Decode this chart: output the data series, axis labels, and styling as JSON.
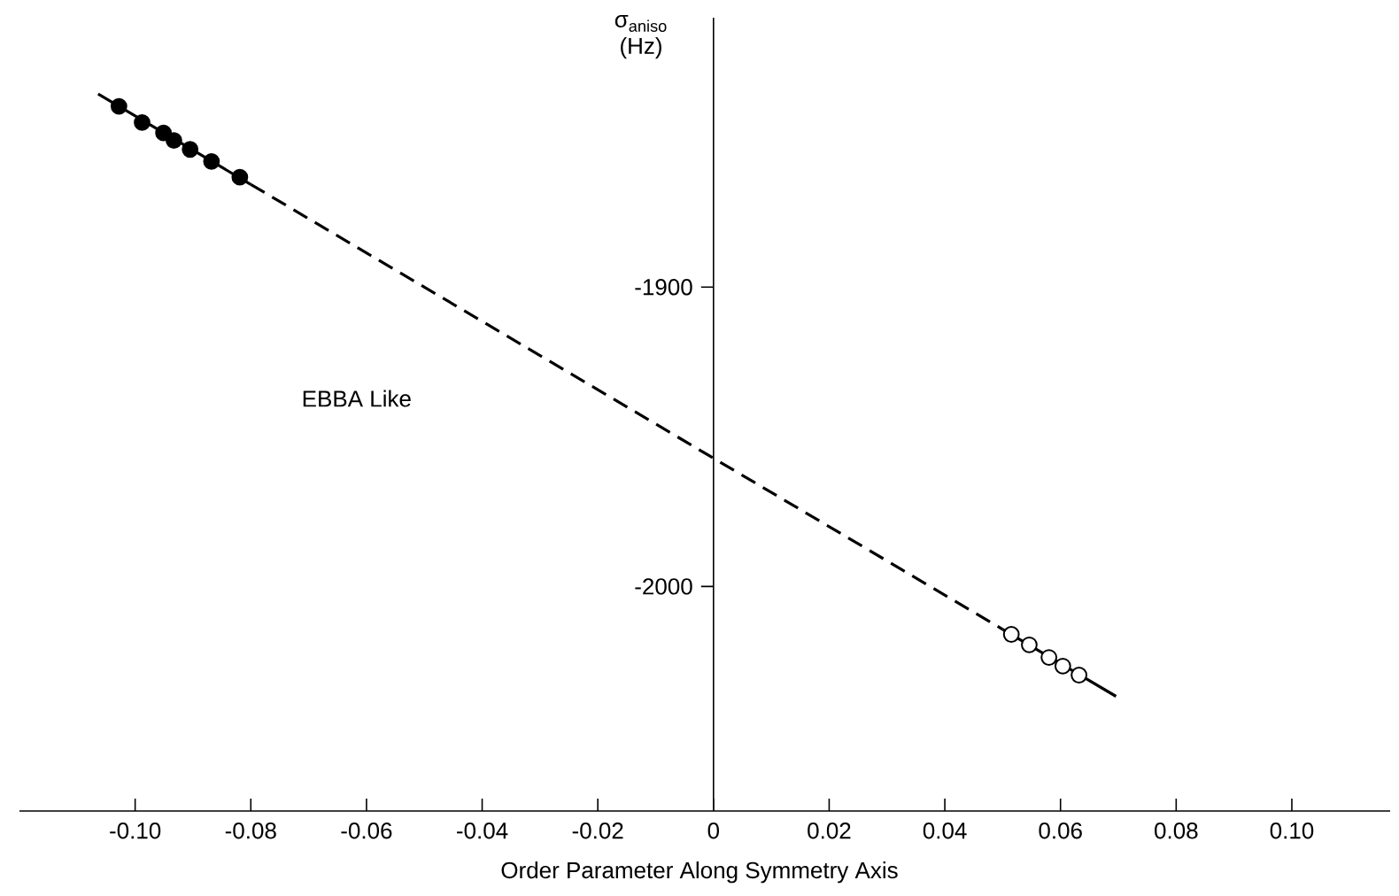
{
  "chart_data": {
    "type": "scatter",
    "xlabel": "Order Parameter Along Symmetry Axis",
    "ylabel": "σ$_{aniso}$ (Hz)",
    "xlim": [
      -0.12,
      0.117
    ],
    "ylim": [
      -2075,
      -1810
    ],
    "xticks": [
      {
        "value": -0.1,
        "label": "-0.10"
      },
      -0.08,
      -0.06,
      -0.04,
      -0.02,
      0,
      0.02,
      0.04,
      0.06,
      0.08,
      {
        "value": 0.1,
        "label": "0.10"
      }
    ],
    "yticks": [
      -1900,
      -2000
    ],
    "annotations": [
      "EBBA Like"
    ],
    "series": [
      {
        "type": "line",
        "color": "#000000",
        "line_style": "solid",
        "marker": "none",
        "x": [
          -0.1064,
          -0.08
        ],
        "values": [
          -1835.5,
          -1865.7
        ]
      },
      {
        "type": "line",
        "color": "#000000",
        "line_style": "dashed",
        "marker": "none",
        "x": [
          -0.08,
          0.05
        ],
        "values": [
          -1865.7,
          -2014.3
        ]
      },
      {
        "type": "line",
        "color": "#000000",
        "line_style": "solid",
        "marker": "none",
        "x": [
          0.05,
          0.0696
        ],
        "values": [
          -2014.3,
          -2036.7
        ]
      },
      {
        "color": "#000000",
        "marker": "circle",
        "x": [
          -0.1028,
          -0.0988,
          -0.0951,
          -0.0933,
          -0.0905,
          -0.0868,
          -0.0819
        ],
        "values": [
          -1839.6,
          -1845,
          -1848.5,
          -1851,
          -1854,
          -1858,
          -1863.3
        ]
      },
      {
        "color": "#ffffff",
        "marker": "circle",
        "x": [
          0.0515,
          0.0546,
          0.058,
          0.0604,
          0.0632
        ],
        "values": [
          -2016,
          -2019.5,
          -2023.7,
          -2026.6,
          -2029.6
        ]
      }
    ]
  }
}
